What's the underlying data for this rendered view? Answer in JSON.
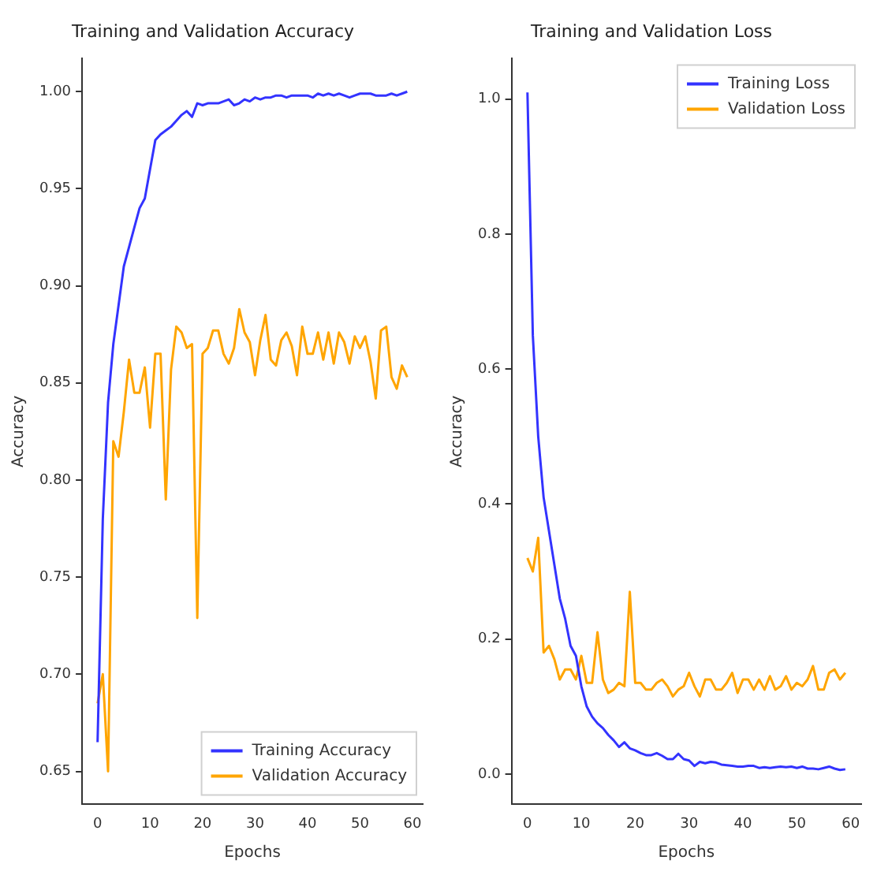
{
  "chart_data": [
    {
      "type": "line",
      "title": "Training and Validation Accuracy",
      "xlabel": "Epochs",
      "ylabel": "Accuracy",
      "legend": "bottom right",
      "x": [
        0,
        1,
        2,
        3,
        4,
        5,
        6,
        7,
        8,
        9,
        10,
        11,
        12,
        13,
        14,
        15,
        16,
        17,
        18,
        19,
        20,
        21,
        22,
        23,
        24,
        25,
        26,
        27,
        28,
        29,
        30,
        31,
        32,
        33,
        34,
        35,
        36,
        37,
        38,
        39,
        40,
        41,
        42,
        43,
        44,
        45,
        46,
        47,
        48,
        49,
        50,
        51,
        52,
        53,
        54,
        55,
        56,
        57,
        58,
        59
      ],
      "xlim": [
        -2.95,
        61.95
      ],
      "xticks": [
        0,
        10,
        20,
        30,
        40,
        50,
        60
      ],
      "ylim": [
        0.633,
        1.017
      ],
      "yticks": [
        {
          "value": 0.65,
          "label": "0.65"
        },
        {
          "value": 0.7,
          "label": "0.70"
        },
        {
          "value": 0.75,
          "label": "0.75"
        },
        {
          "value": 0.8,
          "label": "0.80"
        },
        {
          "value": 0.85,
          "label": "0.85"
        },
        {
          "value": 0.9,
          "label": "0.90"
        },
        {
          "value": 0.95,
          "label": "0.95"
        },
        {
          "value": 1.0,
          "label": "1.00"
        }
      ],
      "series": [
        {
          "name": "Training Accuracy",
          "color": "#3333ff",
          "values": [
            0.665,
            0.78,
            0.84,
            0.87,
            0.89,
            0.91,
            0.92,
            0.93,
            0.94,
            0.945,
            0.96,
            0.975,
            0.978,
            0.98,
            0.982,
            0.985,
            0.988,
            0.99,
            0.987,
            0.994,
            0.993,
            0.994,
            0.994,
            0.994,
            0.995,
            0.996,
            0.993,
            0.994,
            0.996,
            0.995,
            0.997,
            0.996,
            0.997,
            0.997,
            0.998,
            0.998,
            0.997,
            0.998,
            0.998,
            0.998,
            0.998,
            0.997,
            0.999,
            0.998,
            0.999,
            0.998,
            0.999,
            0.998,
            0.997,
            0.998,
            0.999,
            0.999,
            0.999,
            0.998,
            0.998,
            0.998,
            0.999,
            0.998,
            0.999,
            1.0
          ]
        },
        {
          "name": "Validation Accuracy",
          "color": "#ffa500",
          "values": [
            0.685,
            0.7,
            0.65,
            0.82,
            0.812,
            0.835,
            0.862,
            0.845,
            0.845,
            0.858,
            0.827,
            0.865,
            0.865,
            0.79,
            0.857,
            0.879,
            0.876,
            0.868,
            0.87,
            0.729,
            0.865,
            0.868,
            0.877,
            0.877,
            0.865,
            0.86,
            0.868,
            0.888,
            0.876,
            0.871,
            0.854,
            0.872,
            0.885,
            0.862,
            0.859,
            0.872,
            0.876,
            0.869,
            0.854,
            0.879,
            0.865,
            0.865,
            0.876,
            0.862,
            0.876,
            0.86,
            0.876,
            0.871,
            0.86,
            0.874,
            0.868,
            0.874,
            0.861,
            0.842,
            0.877,
            0.879,
            0.853,
            0.847,
            0.859,
            0.853
          ]
        }
      ]
    },
    {
      "type": "line",
      "title": "Training and Validation Loss",
      "xlabel": "Epochs",
      "ylabel": "Accuracy",
      "legend": "top right",
      "x": [
        0,
        1,
        2,
        3,
        4,
        5,
        6,
        7,
        8,
        9,
        10,
        11,
        12,
        13,
        14,
        15,
        16,
        17,
        18,
        19,
        20,
        21,
        22,
        23,
        24,
        25,
        26,
        27,
        28,
        29,
        30,
        31,
        32,
        33,
        34,
        35,
        36,
        37,
        38,
        39,
        40,
        41,
        42,
        43,
        44,
        45,
        46,
        47,
        48,
        49,
        50,
        51,
        52,
        53,
        54,
        55,
        56,
        57,
        58,
        59
      ],
      "xlim": [
        -2.95,
        61.95
      ],
      "xticks": [
        0,
        10,
        20,
        30,
        40,
        50,
        60
      ],
      "ylim": [
        -0.045,
        1.06
      ],
      "yticks": [
        {
          "value": 0,
          "label": "0.0"
        },
        {
          "value": 0.2,
          "label": "0.2"
        },
        {
          "value": 0.4,
          "label": "0.4"
        },
        {
          "value": 0.6,
          "label": "0.6"
        },
        {
          "value": 0.8,
          "label": "0.8"
        },
        {
          "value": 1.0,
          "label": "1.0"
        }
      ],
      "series": [
        {
          "name": "Training Loss",
          "color": "#3333ff",
          "values": [
            1.01,
            0.65,
            0.5,
            0.41,
            0.36,
            0.31,
            0.26,
            0.23,
            0.19,
            0.175,
            0.13,
            0.1,
            0.085,
            0.075,
            0.068,
            0.058,
            0.05,
            0.04,
            0.047,
            0.038,
            0.035,
            0.031,
            0.028,
            0.028,
            0.031,
            0.027,
            0.022,
            0.022,
            0.03,
            0.022,
            0.02,
            0.012,
            0.018,
            0.016,
            0.018,
            0.017,
            0.014,
            0.013,
            0.012,
            0.011,
            0.011,
            0.012,
            0.012,
            0.009,
            0.01,
            0.009,
            0.01,
            0.011,
            0.01,
            0.011,
            0.009,
            0.011,
            0.008,
            0.008,
            0.007,
            0.009,
            0.011,
            0.008,
            0.006,
            0.007
          ]
        },
        {
          "name": "Validation Loss",
          "color": "#ffa500",
          "values": [
            0.32,
            0.3,
            0.35,
            0.18,
            0.19,
            0.17,
            0.14,
            0.155,
            0.155,
            0.14,
            0.175,
            0.135,
            0.135,
            0.21,
            0.14,
            0.12,
            0.125,
            0.135,
            0.13,
            0.27,
            0.135,
            0.135,
            0.125,
            0.125,
            0.135,
            0.14,
            0.13,
            0.115,
            0.125,
            0.13,
            0.15,
            0.13,
            0.115,
            0.14,
            0.14,
            0.125,
            0.125,
            0.135,
            0.15,
            0.12,
            0.14,
            0.14,
            0.125,
            0.14,
            0.125,
            0.145,
            0.125,
            0.13,
            0.145,
            0.125,
            0.135,
            0.13,
            0.14,
            0.16,
            0.125,
            0.125,
            0.15,
            0.155,
            0.14,
            0.15
          ]
        }
      ]
    }
  ]
}
